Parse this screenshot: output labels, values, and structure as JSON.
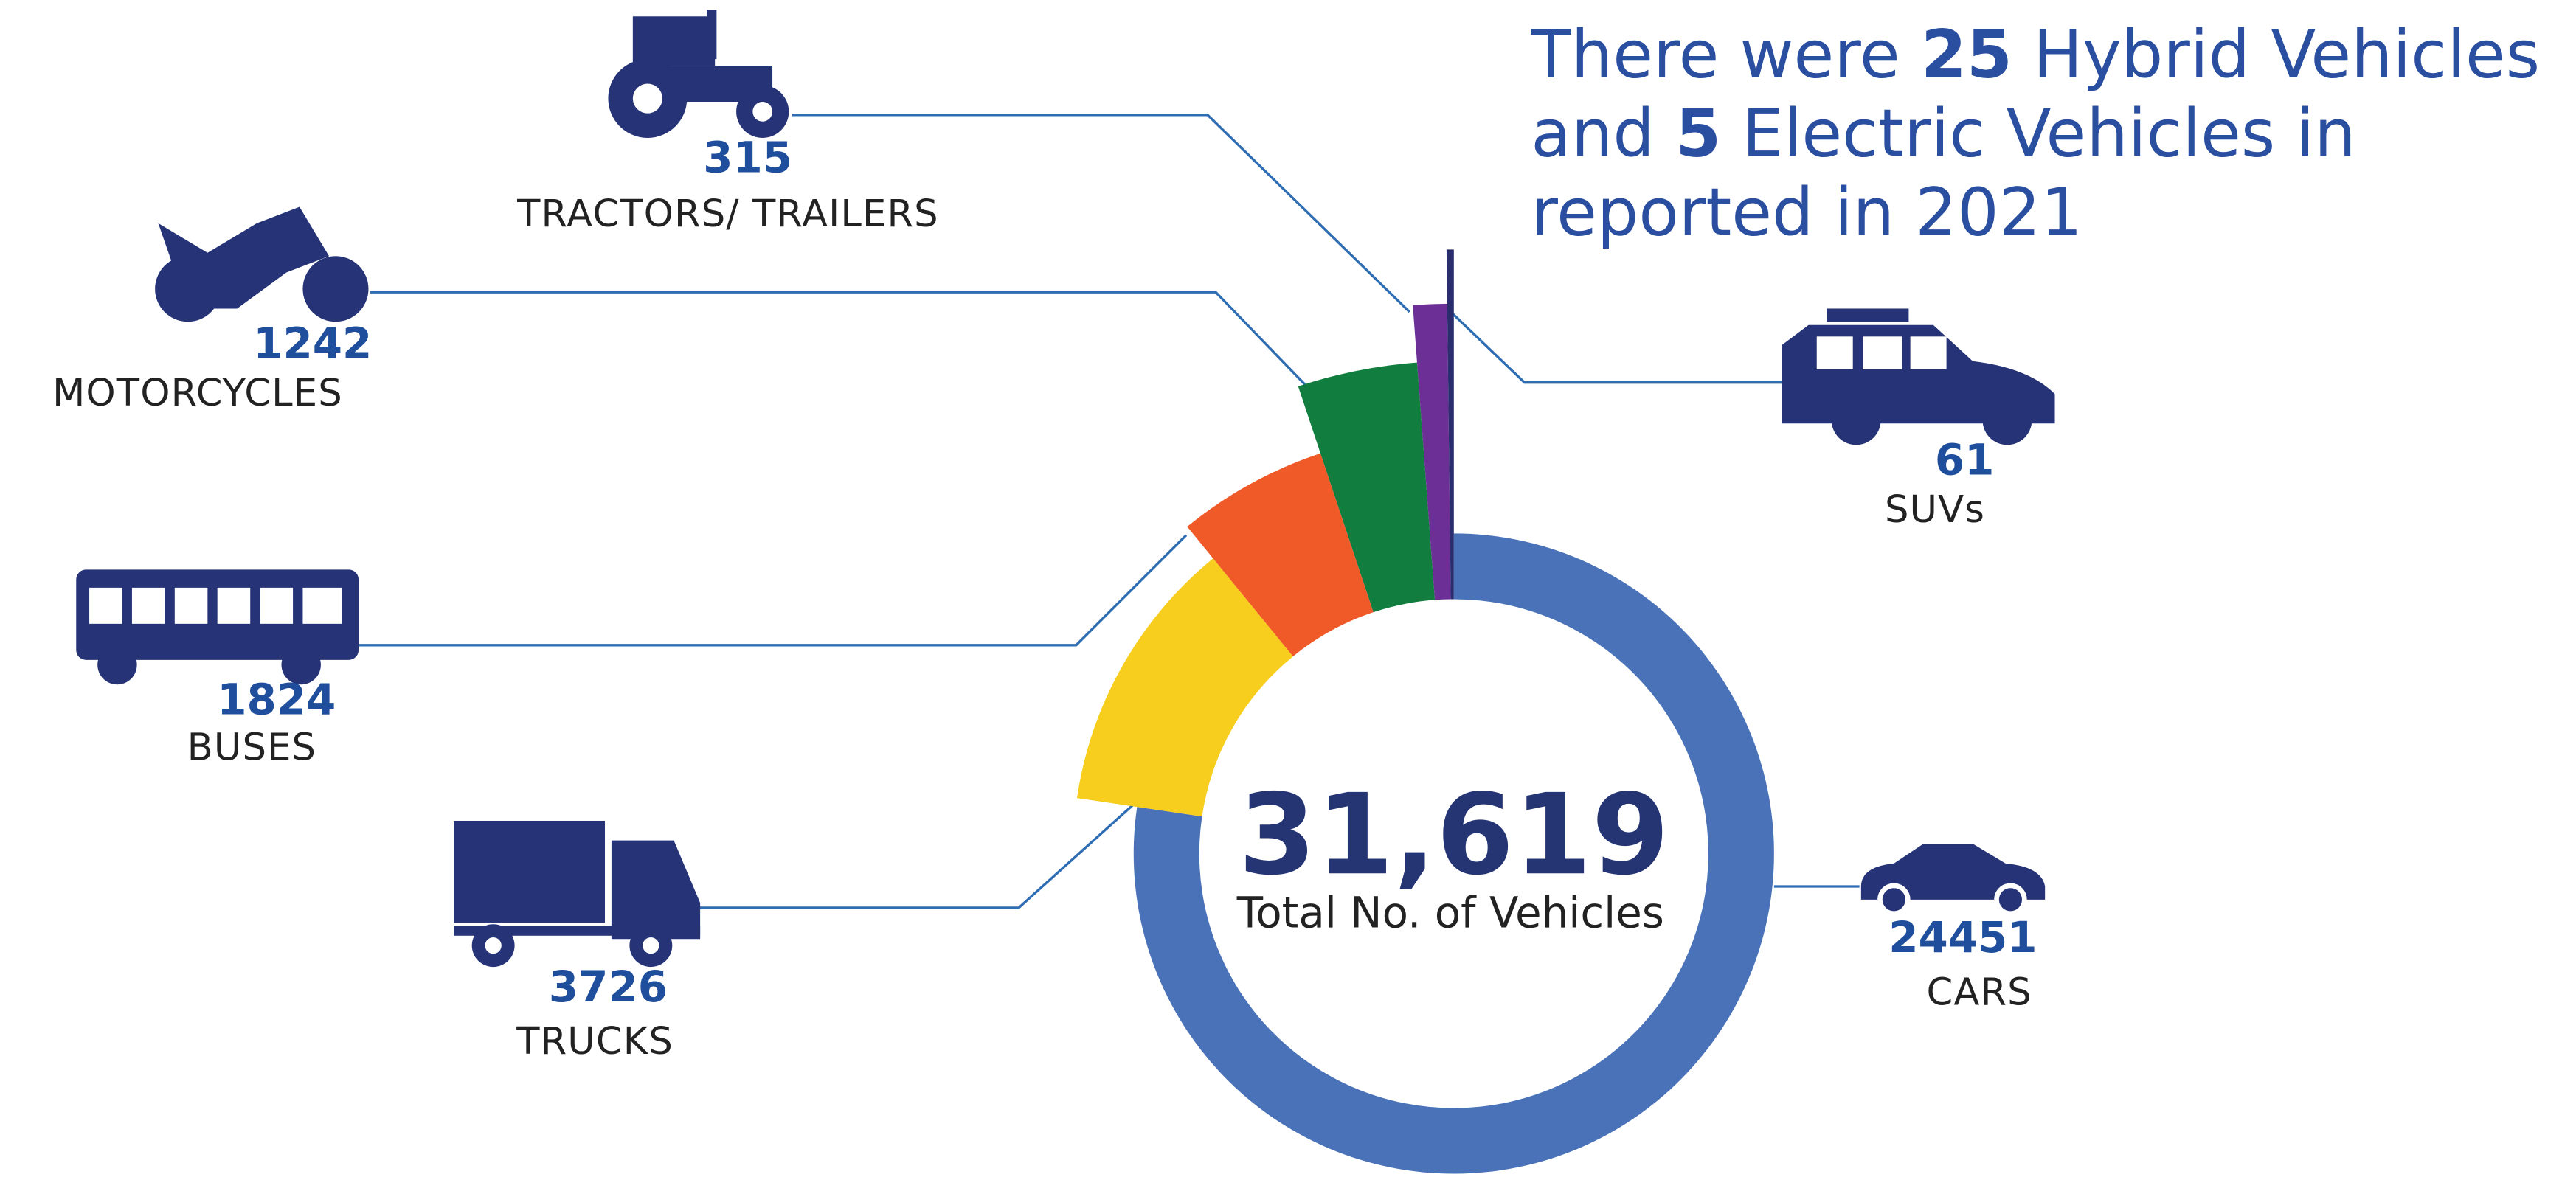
{
  "chart_data": {
    "type": "donut",
    "annotation": [
      "There were ",
      "25",
      " Hybrid Vehicles",
      "and ",
      "5",
      " Electric Vehicles in",
      "reported in 2021"
    ],
    "total": {
      "value": 31619,
      "label": "31,619"
    },
    "total_caption": "Total No. of Vehicles",
    "categories": [
      "CARS",
      "TRUCKS",
      "BUSES",
      "MOTORCYCLES",
      "TRACTORS/ TRAILERS",
      "SUVs"
    ],
    "values": [
      24451,
      3726,
      1824,
      1242,
      315,
      61
    ],
    "colors": [
      "#4a72b8",
      "#f7ce1e",
      "#f05a28",
      "#117e3f",
      "#6b2f95",
      "#2a2e6e"
    ]
  }
}
